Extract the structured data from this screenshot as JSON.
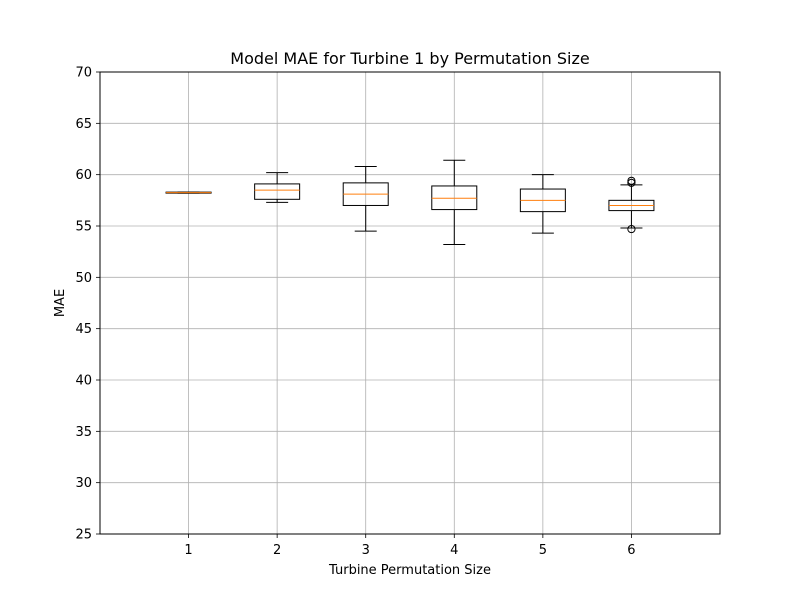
{
  "chart_data": {
    "type": "box",
    "title": "Model MAE for Turbine 1 by Permutation Size",
    "xlabel": "Turbine Permutation Size",
    "ylabel": "MAE",
    "ylim": [
      25,
      70
    ],
    "yticks": [
      25,
      30,
      35,
      40,
      45,
      50,
      55,
      60,
      65,
      70
    ],
    "categories": [
      "1",
      "2",
      "3",
      "4",
      "5",
      "6"
    ],
    "grid": true,
    "boxes": [
      {
        "category": "1",
        "whislo": 58.2,
        "q1": 58.2,
        "median": 58.25,
        "q3": 58.3,
        "whishi": 58.3,
        "fliers": []
      },
      {
        "category": "2",
        "whislo": 57.3,
        "q1": 57.6,
        "median": 58.5,
        "q3": 59.1,
        "whishi": 60.2,
        "fliers": []
      },
      {
        "category": "3",
        "whislo": 54.5,
        "q1": 57.0,
        "median": 58.1,
        "q3": 59.2,
        "whishi": 60.8,
        "fliers": []
      },
      {
        "category": "4",
        "whislo": 53.2,
        "q1": 56.6,
        "median": 57.7,
        "q3": 58.9,
        "whishi": 61.4,
        "fliers": []
      },
      {
        "category": "5",
        "whislo": 54.3,
        "q1": 56.4,
        "median": 57.5,
        "q3": 58.6,
        "whishi": 60.0,
        "fliers": []
      },
      {
        "category": "6",
        "whislo": 54.8,
        "q1": 56.5,
        "median": 57.0,
        "q3": 57.5,
        "whishi": 59.0,
        "fliers": [
          54.7,
          59.2,
          59.4
        ]
      }
    ],
    "colors": {
      "box": "#000000",
      "median": "#ff7f0e",
      "grid": "#b0b0b0",
      "background": "#ffffff"
    }
  }
}
